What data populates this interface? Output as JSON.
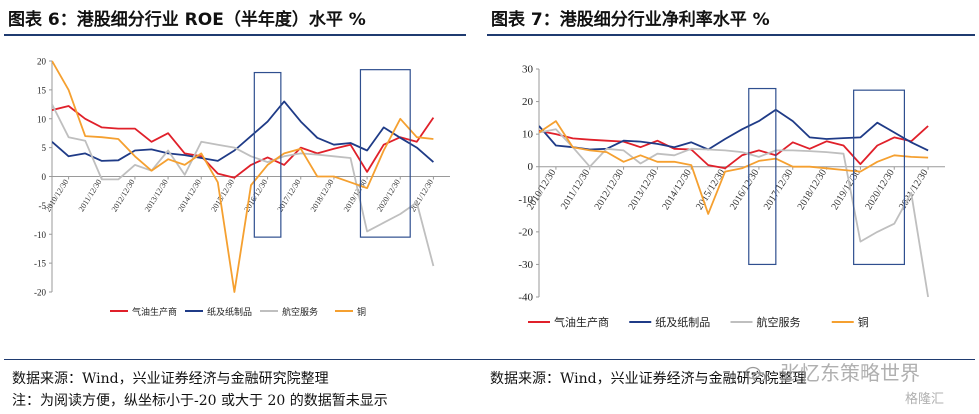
{
  "left": {
    "title": "图表 6：港股细分行业 ROE（半年度）水平 %"
  },
  "right": {
    "title": "图表 7：港股细分行业净利率水平 %"
  },
  "notes": {
    "source_left": "数据来源：Wind，兴业证券经济与金融研究院整理",
    "footnote": "注：为阅读方便，纵坐标小于-20 或大于 20 的数据暂未显示",
    "source_right": "数据来源：Wind，兴业证券经济与金融研究院整理"
  },
  "watermark": {
    "main": "张忆东策略世界",
    "badge": "格隆汇"
  },
  "colors": {
    "oil": "#e0202a",
    "paper": "#1f3b87",
    "airline": "#bfbfbf",
    "copper": "#f5a030",
    "box": "#2f4f8f",
    "rule": "#1f3b70"
  },
  "chart_data": [
    {
      "type": "line",
      "title": "图表 6：港股细分行业 ROE（半年度）水平 %",
      "ylim": [
        -20,
        20
      ],
      "yticks": [
        20,
        15,
        10,
        5,
        0,
        -5,
        -10,
        -15,
        -20
      ],
      "xlim": [
        2010.5,
        2022.5
      ],
      "xtick_labels": [
        "2010/12/30",
        "2011/12/30",
        "2012/12/30",
        "2013/12/30",
        "2014/12/30",
        "2015/12/30",
        "2016/12/30",
        "2017/12/30",
        "2018/12/30",
        "2019/12/30",
        "2020/12/30",
        "2021/12/30"
      ],
      "x": [
        2010.5,
        2011.0,
        2011.5,
        2012.0,
        2012.5,
        2013.0,
        2013.5,
        2014.0,
        2014.5,
        2015.0,
        2015.5,
        2016.0,
        2016.5,
        2017.0,
        2017.5,
        2018.0,
        2018.5,
        2019.0,
        2019.5,
        2020.0,
        2020.5,
        2021.0,
        2021.5,
        2022.0,
        2022.5
      ],
      "legend": [
        "气油生产商",
        "纸及纸制品",
        "航空服务",
        "铜"
      ],
      "legend_position": "bottom",
      "grid": false,
      "series": [
        {
          "name": "气油生产商",
          "color": "#e0202a",
          "values": [
            11.5,
            12.2,
            10.0,
            8.5,
            8.3,
            8.3,
            6.0,
            7.5,
            4.0,
            3.5,
            0.5,
            -0.2,
            2.0,
            3.3,
            2.0,
            5.0,
            4.0,
            4.8,
            5.5,
            0.8,
            5.5,
            6.8,
            6.0,
            10.2,
            null
          ]
        },
        {
          "name": "纸及纸制品",
          "color": "#1f3b87",
          "values": [
            6.0,
            3.5,
            4.0,
            2.7,
            2.8,
            4.5,
            4.7,
            4.0,
            3.7,
            3.2,
            2.7,
            4.5,
            7.0,
            9.5,
            13.0,
            9.5,
            6.7,
            5.5,
            5.8,
            4.5,
            8.5,
            6.7,
            5.0,
            2.5,
            null
          ]
        },
        {
          "name": "航空服务",
          "color": "#bfbfbf",
          "values": [
            12.5,
            6.8,
            6.2,
            -0.5,
            -0.5,
            2.0,
            1.0,
            4.5,
            0.3,
            6.0,
            5.5,
            5.0,
            3.5,
            2.5,
            3.5,
            4.0,
            3.8,
            3.5,
            3.2,
            -9.5,
            -8.0,
            -6.5,
            -4.5,
            -15.5,
            null
          ]
        },
        {
          "name": "铜",
          "color": "#f5a030",
          "values": [
            20.0,
            15.0,
            7.0,
            6.8,
            6.5,
            3.5,
            1.0,
            3.0,
            2.0,
            4.0,
            -1.0,
            -20.0,
            -1.5,
            2.0,
            4.0,
            4.8,
            0.0,
            0.0,
            -1.0,
            -2.0,
            4.5,
            10.0,
            6.8,
            6.5,
            null
          ]
        }
      ],
      "highlight_boxes": [
        {
          "x": [
            2016.6,
            2017.4
          ],
          "y": [
            18,
            -10.5
          ]
        },
        {
          "x": [
            2019.8,
            2021.3
          ],
          "y": [
            18.5,
            -10.5
          ]
        }
      ]
    },
    {
      "type": "line",
      "title": "图表 7：港股细分行业净利率水平 %",
      "ylim": [
        -40,
        30
      ],
      "yticks": [
        30,
        20,
        10,
        0,
        -10,
        -20,
        -30,
        -40
      ],
      "xlim": [
        2010.5,
        2022.5
      ],
      "xtick_labels": [
        "2010/12/30",
        "2011/12/30",
        "2012/12/30",
        "2013/12/30",
        "2014/12/30",
        "2015/12/30",
        "2016/12/30",
        "2017/12/30",
        "2018/12/30",
        "2019/12/30",
        "2020/12/30",
        "2021/12/30"
      ],
      "x": [
        2010.5,
        2011.0,
        2011.5,
        2012.0,
        2012.5,
        2013.0,
        2013.5,
        2014.0,
        2014.5,
        2015.0,
        2015.5,
        2016.0,
        2016.5,
        2017.0,
        2017.5,
        2018.0,
        2018.5,
        2019.0,
        2019.5,
        2020.0,
        2020.5,
        2021.0,
        2021.5,
        2022.0,
        2022.5
      ],
      "legend": [
        "气油生产商",
        "纸及纸制品",
        "航空服务",
        "铜"
      ],
      "legend_position": "bottom",
      "grid": false,
      "series": [
        {
          "name": "气油生产商",
          "color": "#e0202a",
          "values": [
            11.0,
            10.0,
            8.7,
            8.3,
            8.0,
            7.7,
            6.0,
            8.0,
            5.5,
            5.3,
            0.5,
            -0.5,
            3.5,
            5.0,
            3.5,
            7.5,
            5.5,
            7.8,
            6.5,
            0.8,
            6.5,
            9.0,
            7.8,
            12.5,
            null
          ]
        },
        {
          "name": "纸及纸制品",
          "color": "#1f3b87",
          "values": [
            12.5,
            6.5,
            6.0,
            5.3,
            5.5,
            8.0,
            7.7,
            7.0,
            6.0,
            7.5,
            5.3,
            8.5,
            11.5,
            14.0,
            17.5,
            14.0,
            9.0,
            8.5,
            8.8,
            9.0,
            13.5,
            10.5,
            7.5,
            5.0,
            null
          ]
        },
        {
          "name": "航空服务",
          "color": "#bfbfbf",
          "values": [
            10.5,
            11.5,
            6.0,
            0.0,
            5.5,
            5.0,
            1.0,
            4.0,
            3.5,
            5.5,
            5.3,
            5.0,
            4.5,
            3.0,
            5.0,
            5.0,
            4.8,
            4.5,
            4.0,
            -23.0,
            -20.0,
            -17.5,
            -8.0,
            -40.0,
            null
          ]
        },
        {
          "name": "铜",
          "color": "#f5a030",
          "values": [
            10.5,
            14.0,
            6.0,
            5.0,
            4.5,
            1.5,
            3.5,
            1.5,
            1.5,
            0.5,
            -14.5,
            -1.5,
            -0.5,
            1.8,
            2.5,
            0.0,
            0.0,
            -0.5,
            -1.0,
            -1.5,
            1.5,
            3.5,
            3.0,
            2.8,
            null
          ]
        }
      ],
      "highlight_boxes": [
        {
          "x": [
            2016.7,
            2017.5
          ],
          "y": [
            24,
            -30
          ]
        },
        {
          "x": [
            2019.8,
            2021.3
          ],
          "y": [
            23.5,
            -30
          ]
        }
      ]
    }
  ]
}
